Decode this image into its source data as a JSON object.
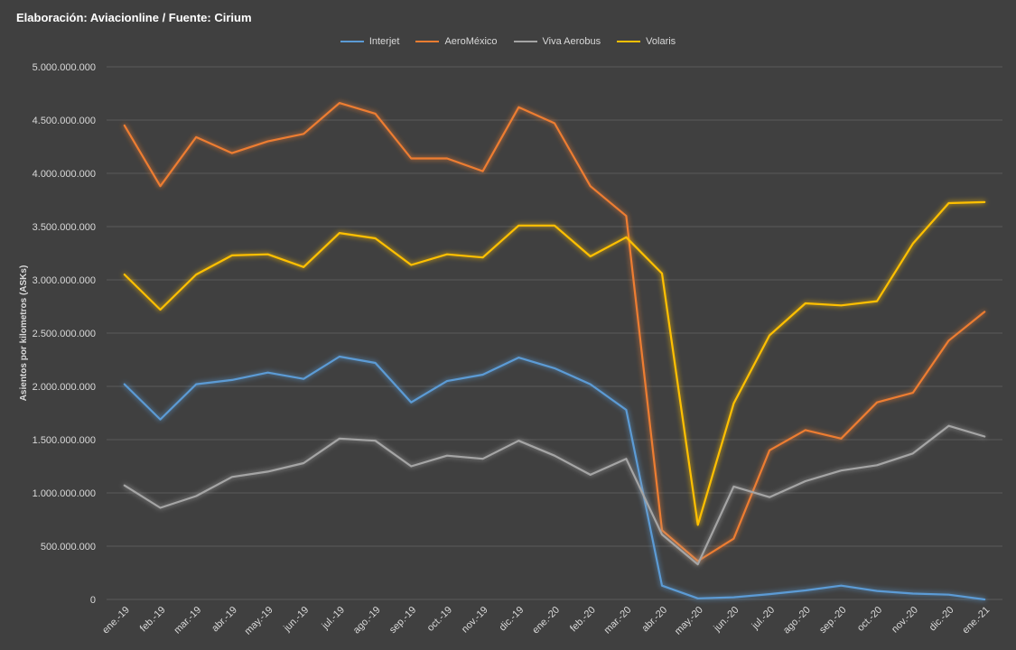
{
  "chart_title": "Elaboración: Aviacionline / Fuente: Cirium",
  "chart_data": {
    "type": "line",
    "title": "Elaboración: Aviacionline / Fuente: Cirium",
    "xlabel": "",
    "ylabel": "Asientos por kilometros (ASKs)",
    "ylim": [
      0,
      5000000000
    ],
    "ytick_step": 500000000,
    "yticks": [
      "0",
      "500.000.000",
      "1.000.000.000",
      "1.500.000.000",
      "2.000.000.000",
      "2.500.000.000",
      "3.000.000.000",
      "3.500.000.000",
      "4.000.000.000",
      "4.500.000.000",
      "5.000.000.000"
    ],
    "grid": true,
    "legend_position": "top-center",
    "categories": [
      "ene.-19",
      "feb.-19",
      "mar.-19",
      "abr.-19",
      "may.-19",
      "jun.-19",
      "jul.-19",
      "ago.-19",
      "sep.-19",
      "oct.-19",
      "nov.-19",
      "dic.-19",
      "ene.-20",
      "feb.-20",
      "mar.-20",
      "abr.-20",
      "may.-20",
      "jun.-20",
      "jul.-20",
      "ago.-20",
      "sep.-20",
      "oct.-20",
      "nov.-20",
      "dic.-20",
      "ene.-21"
    ],
    "series": [
      {
        "name": "Interjet",
        "color": "#5b9bd5",
        "values": [
          2020000000,
          1690000000,
          2020000000,
          2060000000,
          2130000000,
          2070000000,
          2280000000,
          2220000000,
          1850000000,
          2050000000,
          2110000000,
          2270000000,
          2170000000,
          2020000000,
          1780000000,
          130000000,
          10000000,
          20000000,
          50000000,
          85000000,
          130000000,
          80000000,
          55000000,
          45000000,
          0
        ]
      },
      {
        "name": "AeroMéxico",
        "color": "#ed7d31",
        "values": [
          4450000000,
          3880000000,
          4340000000,
          4190000000,
          4300000000,
          4370000000,
          4660000000,
          4560000000,
          4140000000,
          4140000000,
          4020000000,
          4620000000,
          4470000000,
          3880000000,
          3600000000,
          650000000,
          360000000,
          570000000,
          1400000000,
          1590000000,
          1510000000,
          1850000000,
          1940000000,
          2430000000,
          2700000000
        ]
      },
      {
        "name": "Viva Aerobus",
        "color": "#a5a5a5",
        "values": [
          1070000000,
          860000000,
          970000000,
          1150000000,
          1200000000,
          1280000000,
          1510000000,
          1490000000,
          1250000000,
          1350000000,
          1320000000,
          1490000000,
          1350000000,
          1170000000,
          1320000000,
          610000000,
          330000000,
          1060000000,
          960000000,
          1110000000,
          1210000000,
          1260000000,
          1370000000,
          1630000000,
          1530000000
        ]
      },
      {
        "name": "Volaris",
        "color": "#ffc000",
        "values": [
          3050000000,
          2720000000,
          3050000000,
          3230000000,
          3240000000,
          3120000000,
          3440000000,
          3390000000,
          3140000000,
          3240000000,
          3210000000,
          3510000000,
          3510000000,
          3220000000,
          3400000000,
          3060000000,
          700000000,
          1840000000,
          2480000000,
          2780000000,
          2760000000,
          2800000000,
          3340000000,
          3720000000,
          3730000000
        ]
      }
    ]
  }
}
